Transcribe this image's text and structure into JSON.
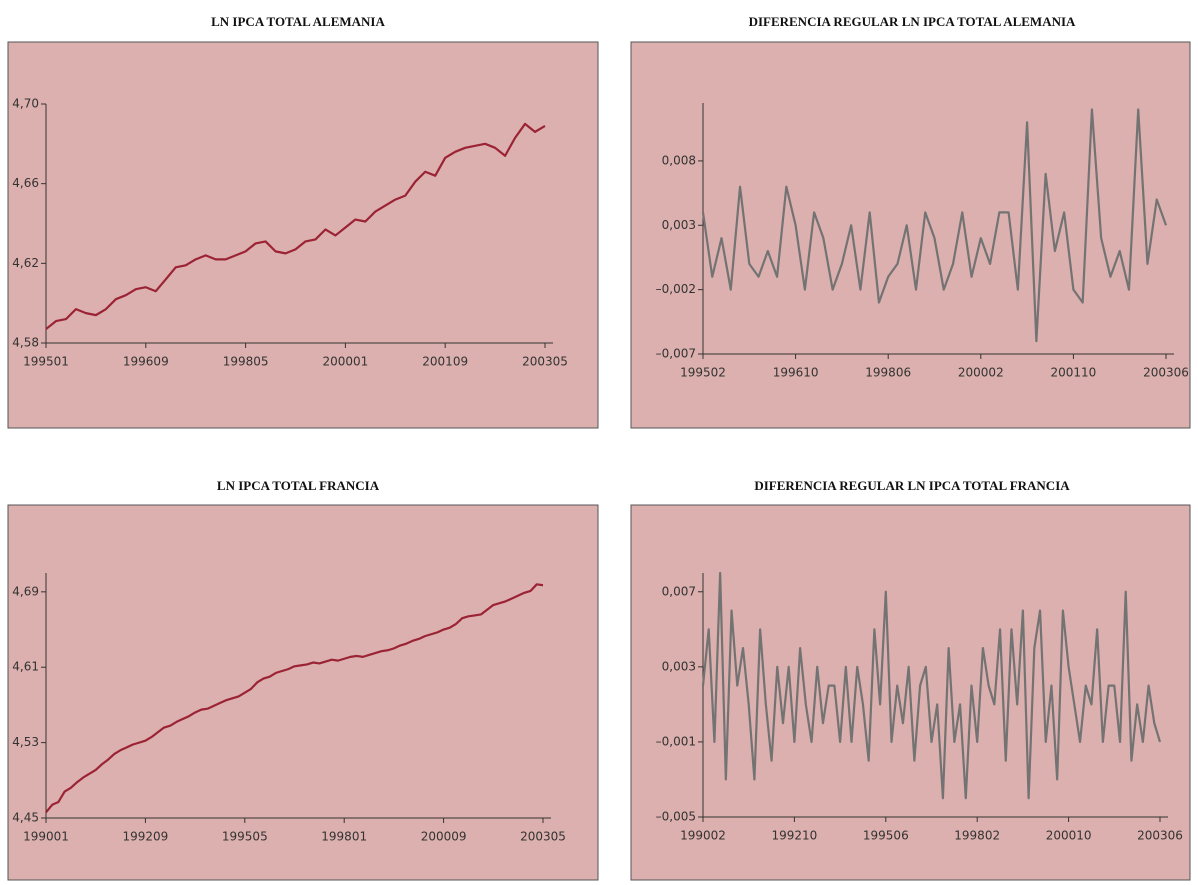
{
  "chart_data": [
    {
      "type": "line",
      "title": "LN IPCA TOTAL ALEMANIA",
      "color": "#9b2335",
      "categories": [
        "199501",
        null,
        null,
        null,
        null,
        null,
        null,
        null,
        null,
        null,
        "199609",
        null,
        null,
        null,
        null,
        null,
        null,
        null,
        null,
        null,
        "199805",
        null,
        null,
        null,
        null,
        null,
        null,
        null,
        null,
        null,
        "200001",
        null,
        null,
        null,
        null,
        null,
        null,
        null,
        null,
        null,
        "200109",
        null,
        null,
        null,
        null,
        null,
        null,
        null,
        null,
        null,
        "200305"
      ],
      "values": [
        4.587,
        4.591,
        4.592,
        4.597,
        4.595,
        4.594,
        4.597,
        4.602,
        4.604,
        4.607,
        4.608,
        4.606,
        4.612,
        4.618,
        4.619,
        4.622,
        4.624,
        4.622,
        4.622,
        4.624,
        4.626,
        4.63,
        4.631,
        4.626,
        4.625,
        4.627,
        4.631,
        4.632,
        4.637,
        4.634,
        4.638,
        4.642,
        4.641,
        4.646,
        4.649,
        4.652,
        4.654,
        4.661,
        4.666,
        4.664,
        4.673,
        4.676,
        4.678,
        4.679,
        4.68,
        4.678,
        4.674,
        4.683,
        4.69,
        4.686,
        4.689
      ],
      "ylim": [
        4.58,
        4.7
      ],
      "yticks": [
        {
          "value": 4.58,
          "label": "4,58"
        },
        {
          "value": 4.62,
          "label": "4,62"
        },
        {
          "value": 4.66,
          "label": "4,66"
        },
        {
          "value": 4.7,
          "label": "4,70"
        }
      ]
    },
    {
      "type": "line",
      "title": "DIFERENCIA REGULAR LN IPCA TOTAL ALEMANIA",
      "color": "#737373",
      "categories": [
        "199502",
        null,
        null,
        null,
        null,
        null,
        null,
        null,
        null,
        null,
        "199610",
        null,
        null,
        null,
        null,
        null,
        null,
        null,
        null,
        null,
        "199806",
        null,
        null,
        null,
        null,
        null,
        null,
        null,
        null,
        null,
        "200002",
        null,
        null,
        null,
        null,
        null,
        null,
        null,
        null,
        null,
        "200110",
        null,
        null,
        null,
        null,
        null,
        null,
        null,
        null,
        null,
        "200306"
      ],
      "values": [
        0.004,
        -0.001,
        0.002,
        -0.002,
        0.006,
        0.0,
        -0.001,
        0.001,
        -0.001,
        0.006,
        0.003,
        -0.002,
        0.004,
        0.002,
        -0.002,
        0.0,
        0.003,
        -0.002,
        0.004,
        -0.003,
        -0.001,
        0.0,
        0.003,
        -0.002,
        0.004,
        0.002,
        -0.002,
        0.0,
        0.004,
        -0.001,
        0.002,
        0.0,
        0.004,
        0.004,
        -0.002,
        0.011,
        -0.006,
        0.007,
        0.001,
        0.004,
        -0.002,
        -0.003,
        0.012,
        0.002,
        -0.001,
        0.001,
        -0.002,
        0.012,
        0.0,
        0.005,
        0.003
      ],
      "ylim": [
        -0.007,
        0.0125
      ],
      "yticks": [
        {
          "value": -0.007,
          "label": "–0,007"
        },
        {
          "value": -0.002,
          "label": "–0,002"
        },
        {
          "value": 0.003,
          "label": "0,003"
        },
        {
          "value": 0.008,
          "label": "0,008"
        }
      ]
    },
    {
      "type": "line",
      "title": "LN IPCA TOTAL FRANCIA",
      "color": "#9b2335",
      "categories": [
        "199001",
        null,
        null,
        null,
        null,
        null,
        null,
        null,
        null,
        null,
        null,
        null,
        null,
        null,
        null,
        null,
        "199209",
        null,
        null,
        null,
        null,
        null,
        null,
        null,
        null,
        null,
        null,
        null,
        null,
        null,
        null,
        null,
        "199505",
        null,
        null,
        null,
        null,
        null,
        null,
        null,
        null,
        null,
        null,
        null,
        null,
        null,
        null,
        null,
        "199801",
        null,
        null,
        null,
        null,
        null,
        null,
        null,
        null,
        null,
        null,
        null,
        null,
        null,
        null,
        null,
        "200009",
        null,
        null,
        null,
        null,
        null,
        null,
        null,
        null,
        null,
        null,
        null,
        null,
        null,
        null,
        null,
        "200305"
      ],
      "values": [
        4.456,
        4.464,
        4.467,
        4.478,
        4.482,
        4.488,
        4.493,
        4.497,
        4.501,
        4.507,
        4.512,
        4.518,
        4.522,
        4.525,
        4.528,
        4.53,
        4.532,
        4.536,
        4.541,
        4.546,
        4.548,
        4.552,
        4.555,
        4.558,
        4.562,
        4.565,
        4.566,
        4.569,
        4.572,
        4.575,
        4.577,
        4.579,
        4.583,
        4.587,
        4.594,
        4.598,
        4.6,
        4.604,
        4.606,
        4.608,
        4.611,
        4.612,
        4.613,
        4.615,
        4.614,
        4.616,
        4.618,
        4.617,
        4.619,
        4.621,
        4.622,
        4.621,
        4.623,
        4.625,
        4.627,
        4.628,
        4.63,
        4.633,
        4.635,
        4.638,
        4.64,
        4.643,
        4.645,
        4.647,
        4.65,
        4.652,
        4.656,
        4.662,
        4.664,
        4.665,
        4.666,
        4.671,
        4.676,
        4.678,
        4.68,
        4.683,
        4.686,
        4.689,
        4.691,
        4.698,
        4.697
      ],
      "ylim": [
        4.45,
        4.71
      ],
      "yticks": [
        {
          "value": 4.45,
          "label": "4,45"
        },
        {
          "value": 4.53,
          "label": "4,53"
        },
        {
          "value": 4.61,
          "label": "4,61"
        },
        {
          "value": 4.69,
          "label": "4,69"
        }
      ]
    },
    {
      "type": "line",
      "title": "DIFERENCIA REGULAR LN IPCA TOTAL FRANCIA",
      "color": "#737373",
      "categories": [
        "199002",
        null,
        null,
        null,
        null,
        null,
        null,
        null,
        null,
        null,
        null,
        null,
        null,
        null,
        null,
        null,
        "199210",
        null,
        null,
        null,
        null,
        null,
        null,
        null,
        null,
        null,
        null,
        null,
        null,
        null,
        null,
        null,
        "199506",
        null,
        null,
        null,
        null,
        null,
        null,
        null,
        null,
        null,
        null,
        null,
        null,
        null,
        null,
        null,
        "199802",
        null,
        null,
        null,
        null,
        null,
        null,
        null,
        null,
        null,
        null,
        null,
        null,
        null,
        null,
        null,
        "200010",
        null,
        null,
        null,
        null,
        null,
        null,
        null,
        null,
        null,
        null,
        null,
        null,
        null,
        null,
        null,
        "200306"
      ],
      "values": [
        0.002,
        0.005,
        -0.001,
        0.008,
        -0.003,
        0.006,
        0.002,
        0.004,
        0.001,
        -0.003,
        0.005,
        0.001,
        -0.002,
        0.003,
        0.0,
        0.003,
        -0.001,
        0.004,
        0.001,
        -0.001,
        0.003,
        0.0,
        0.002,
        0.002,
        -0.001,
        0.003,
        -0.001,
        0.003,
        0.001,
        -0.002,
        0.005,
        0.001,
        0.007,
        -0.001,
        0.002,
        0.0,
        0.003,
        -0.002,
        0.002,
        0.003,
        -0.001,
        0.001,
        -0.004,
        0.004,
        -0.001,
        0.001,
        -0.004,
        0.002,
        -0.001,
        0.004,
        0.002,
        0.001,
        0.005,
        -0.002,
        0.005,
        0.001,
        0.006,
        -0.004,
        0.004,
        0.006,
        -0.001,
        0.002,
        -0.003,
        0.006,
        0.003,
        0.001,
        -0.001,
        0.002,
        0.001,
        0.005,
        -0.001,
        0.002,
        0.002,
        -0.001,
        0.007,
        -0.002,
        0.001,
        -0.001,
        0.002,
        0.0,
        -0.001
      ],
      "ylim": [
        -0.005,
        0.008
      ],
      "yticks": [
        {
          "value": -0.005,
          "label": "–0,005"
        },
        {
          "value": -0.001,
          "label": "–0,001"
        },
        {
          "value": 0.003,
          "label": "0,003"
        },
        {
          "value": 0.007,
          "label": "0,007"
        }
      ]
    }
  ]
}
